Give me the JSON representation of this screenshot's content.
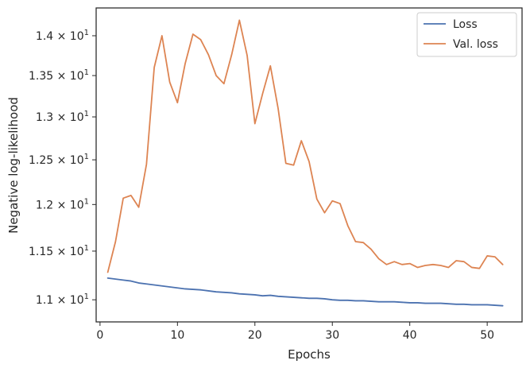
{
  "chart_data": {
    "type": "line",
    "xlabel": "Epochs",
    "ylabel": "Negative log-likelihood",
    "yscale": "log",
    "xlim": [
      -0.5,
      54.5
    ],
    "ylim": [
      10.78,
      14.36
    ],
    "xticks": [
      0,
      10,
      20,
      30,
      40,
      50
    ],
    "yticks": [
      {
        "value": 11.0,
        "mantissa": "1.1",
        "base": "10",
        "exp": "1"
      },
      {
        "value": 11.5,
        "mantissa": "1.15",
        "base": "10",
        "exp": "1"
      },
      {
        "value": 12.0,
        "mantissa": "1.2",
        "base": "10",
        "exp": "1"
      },
      {
        "value": 12.5,
        "mantissa": "1.25",
        "base": "10",
        "exp": "1"
      },
      {
        "value": 13.0,
        "mantissa": "1.3",
        "base": "10",
        "exp": "1"
      },
      {
        "value": 13.5,
        "mantissa": "1.35",
        "base": "10",
        "exp": "1"
      },
      {
        "value": 14.0,
        "mantissa": "1.4",
        "base": "10",
        "exp": "1"
      }
    ],
    "grid": false,
    "legend_position": "top-right",
    "x": [
      1,
      2,
      3,
      4,
      5,
      6,
      7,
      8,
      9,
      10,
      11,
      12,
      13,
      14,
      15,
      16,
      17,
      18,
      19,
      20,
      21,
      22,
      23,
      24,
      25,
      26,
      27,
      28,
      29,
      30,
      31,
      32,
      33,
      34,
      35,
      36,
      37,
      38,
      39,
      40,
      41,
      42,
      43,
      44,
      45,
      46,
      47,
      48,
      49,
      50,
      51,
      52
    ],
    "series": [
      {
        "name": "Loss",
        "color": "#4c72b0",
        "values": [
          11.22,
          11.21,
          11.2,
          11.19,
          11.17,
          11.16,
          11.15,
          11.14,
          11.13,
          11.12,
          11.11,
          11.105,
          11.1,
          11.09,
          11.08,
          11.075,
          11.07,
          11.06,
          11.055,
          11.05,
          11.04,
          11.045,
          11.035,
          11.03,
          11.025,
          11.02,
          11.015,
          11.015,
          11.01,
          11.0,
          10.995,
          10.995,
          10.99,
          10.99,
          10.985,
          10.98,
          10.98,
          10.98,
          10.975,
          10.97,
          10.97,
          10.965,
          10.965,
          10.965,
          10.96,
          10.955,
          10.955,
          10.95,
          10.95,
          10.95,
          10.945,
          10.94
        ]
      },
      {
        "name": "Val. loss",
        "color": "#dd8452",
        "values": [
          11.28,
          11.6,
          12.07,
          12.1,
          11.97,
          12.45,
          13.6,
          14.0,
          13.42,
          13.17,
          13.65,
          14.02,
          13.95,
          13.76,
          13.5,
          13.4,
          13.76,
          14.2,
          13.75,
          12.92,
          13.28,
          13.62,
          13.1,
          12.46,
          12.44,
          12.72,
          12.48,
          12.06,
          11.91,
          12.04,
          12.01,
          11.77,
          11.6,
          11.59,
          11.52,
          11.42,
          11.36,
          11.39,
          11.36,
          11.37,
          11.33,
          11.35,
          11.36,
          11.35,
          11.33,
          11.4,
          11.39,
          11.33,
          11.32,
          11.45,
          11.44,
          11.36
        ]
      }
    ]
  }
}
